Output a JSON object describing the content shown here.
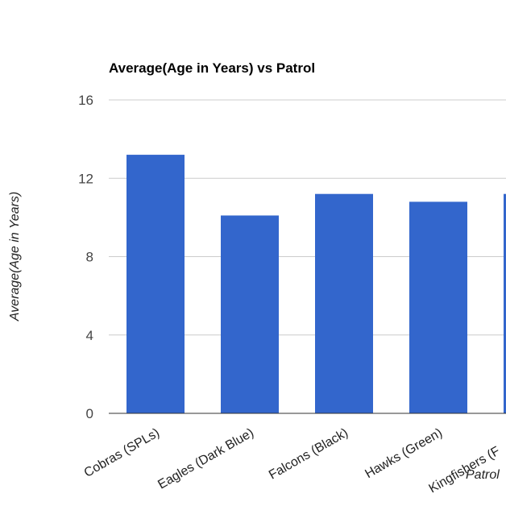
{
  "chart_data": {
    "type": "bar",
    "title": "Average(Age in Years) vs Patrol",
    "xlabel": "Patrol",
    "ylabel": "Average(Age in Years)",
    "categories": [
      "Cobras (SPLs)",
      "Eagles (Dark Blue)",
      "Falcons (Black)",
      "Hawks (Green)",
      "Kingfishers (F"
    ],
    "series": [
      {
        "values": [
          13.2,
          10.1,
          11.2,
          10.8,
          11.2
        ]
      }
    ],
    "ylim": [
      0,
      16
    ],
    "yticks": [
      0,
      4,
      8,
      12,
      16
    ],
    "grid": true,
    "legend": "none",
    "colors": {
      "bar": "#3366cc",
      "grid": "#cccccc",
      "baseline": "#333333"
    }
  }
}
